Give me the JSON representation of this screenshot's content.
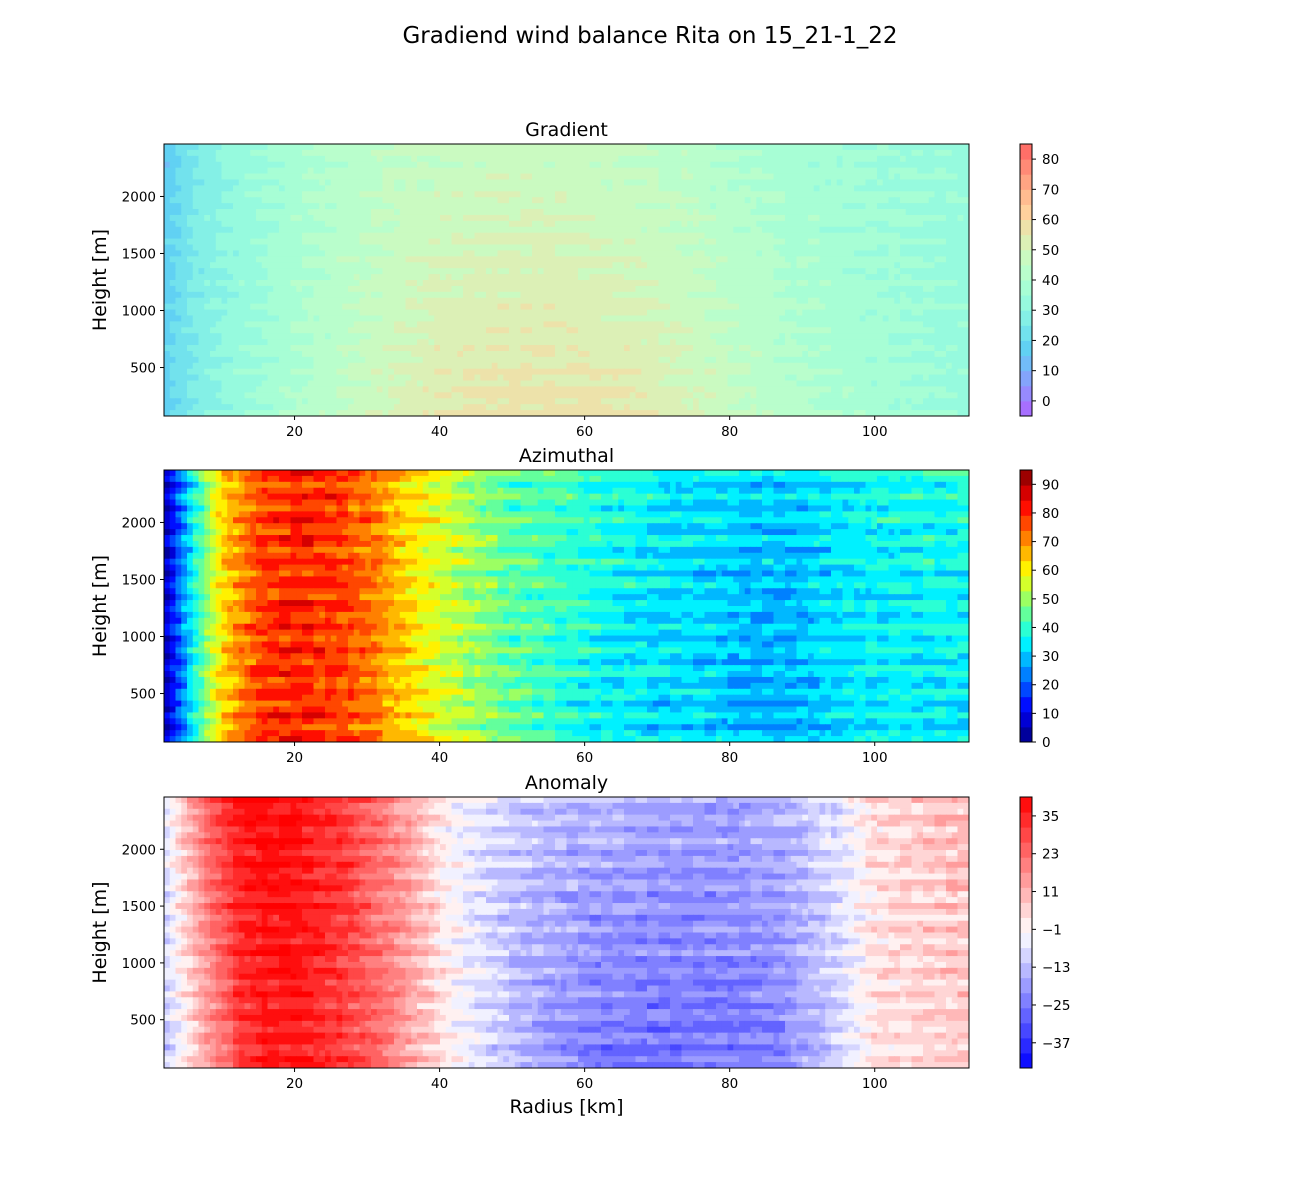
{
  "figure": {
    "title": "Gradiend wind balance Rita on 15_21-1_22"
  },
  "chart_data": [
    {
      "type": "heatmap",
      "title": "Gradient",
      "xlabel": "",
      "ylabel": "Height [m]",
      "xlim": [
        2,
        113
      ],
      "ylim": [
        75,
        2460
      ],
      "x_ticks": [
        20,
        40,
        60,
        80,
        100
      ],
      "y_ticks": [
        500,
        1000,
        1500,
        2000
      ],
      "colormap": "rainbow",
      "colorbar": {
        "vmin": -5,
        "vmax": 85,
        "ticks": [
          0,
          10,
          20,
          30,
          40,
          50,
          60,
          70,
          80
        ]
      },
      "radial_profile": {
        "radius": [
          2,
          4,
          6,
          10,
          16,
          24,
          32,
          40,
          50,
          60,
          70,
          80,
          90,
          100,
          113
        ],
        "surface": [
          18,
          22,
          26,
          31,
          36,
          43,
          49,
          55,
          57,
          57,
          54,
          47,
          41,
          37,
          33
        ],
        "top": [
          16,
          20,
          25,
          30,
          35,
          40,
          44,
          46,
          47,
          46,
          44,
          40,
          37,
          35,
          33
        ]
      }
    },
    {
      "type": "heatmap",
      "title": "Azimuthal",
      "xlabel": "",
      "ylabel": "Height [m]",
      "xlim": [
        2,
        113
      ],
      "ylim": [
        75,
        2460
      ],
      "x_ticks": [
        20,
        40,
        60,
        80,
        100
      ],
      "y_ticks": [
        500,
        1000,
        1500,
        2000
      ],
      "colormap": "jet",
      "colorbar": {
        "vmin": 0,
        "vmax": 95,
        "ticks": [
          0,
          10,
          20,
          30,
          40,
          50,
          60,
          70,
          80,
          90
        ]
      },
      "radial_profile": {
        "radius": [
          2,
          3,
          4,
          6,
          8,
          10,
          13,
          16,
          20,
          25,
          30,
          35,
          40,
          45,
          50,
          60,
          70,
          80,
          87,
          95,
          100,
          113
        ],
        "surface": [
          5,
          12,
          20,
          35,
          50,
          62,
          72,
          78,
          80,
          78,
          73,
          64,
          56,
          50,
          44,
          36,
          32,
          30,
          28,
          32,
          34,
          34
        ],
        "top": [
          6,
          12,
          20,
          35,
          50,
          62,
          72,
          78,
          80,
          78,
          73,
          64,
          56,
          50,
          44,
          40,
          35,
          32,
          31,
          34,
          37,
          38
        ]
      }
    },
    {
      "type": "heatmap",
      "title": "Anomaly",
      "xlabel": "Radius [km]",
      "ylabel": "Height [m]",
      "xlim": [
        2,
        113
      ],
      "ylim": [
        75,
        2460
      ],
      "x_ticks": [
        20,
        40,
        60,
        80,
        100
      ],
      "y_ticks": [
        500,
        1000,
        1500,
        2000
      ],
      "colormap": "bwr",
      "colorbar": {
        "vmin": -45,
        "vmax": 41,
        "ticks": [
          -37,
          -25,
          -13,
          -1,
          11,
          23,
          35
        ]
      },
      "radial_profile": {
        "radius": [
          2,
          4,
          8,
          12,
          16,
          20,
          26,
          32,
          38,
          42,
          50,
          60,
          70,
          80,
          87,
          95,
          100,
          113
        ],
        "surface": [
          -14,
          -5,
          12,
          28,
          36,
          38,
          32,
          22,
          8,
          -2,
          -14,
          -24,
          -27,
          -25,
          -23,
          -10,
          2,
          6
        ],
        "top": [
          -8,
          5,
          25,
          38,
          41,
          38,
          32,
          22,
          8,
          -3,
          -10,
          -14,
          -16,
          -17,
          -15,
          -6,
          4,
          10
        ]
      }
    }
  ]
}
